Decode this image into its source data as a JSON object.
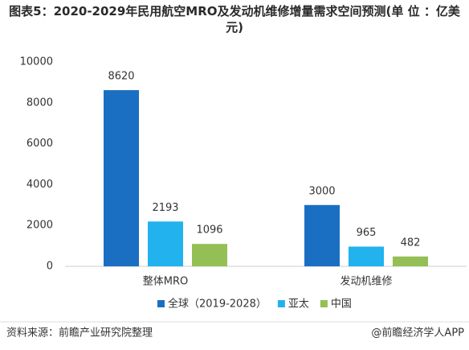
{
  "chart_data": {
    "type": "bar",
    "title": "图表5：2020-2029年民用航空MRO及发动机维修增量需求空间预测(单 位 ：亿美元)",
    "categories": [
      "整体MRO",
      "发动机维修"
    ],
    "series": [
      {
        "name": "全球（2019-2028）",
        "color": "#1b6fc2",
        "values": [
          8620,
          3000
        ]
      },
      {
        "name": "亚太",
        "color": "#22b2ee",
        "values": [
          2193,
          965
        ]
      },
      {
        "name": "中国",
        "color": "#94bf55",
        "values": [
          1096,
          482
        ]
      }
    ],
    "ylim": [
      0,
      10000
    ],
    "yticks": [
      0,
      2000,
      4000,
      6000,
      8000,
      10000
    ],
    "grid": false,
    "legend": "bottom",
    "source": "资料来源：前瞻产业研究院整理",
    "credit": "@前瞻经济学人APP"
  }
}
